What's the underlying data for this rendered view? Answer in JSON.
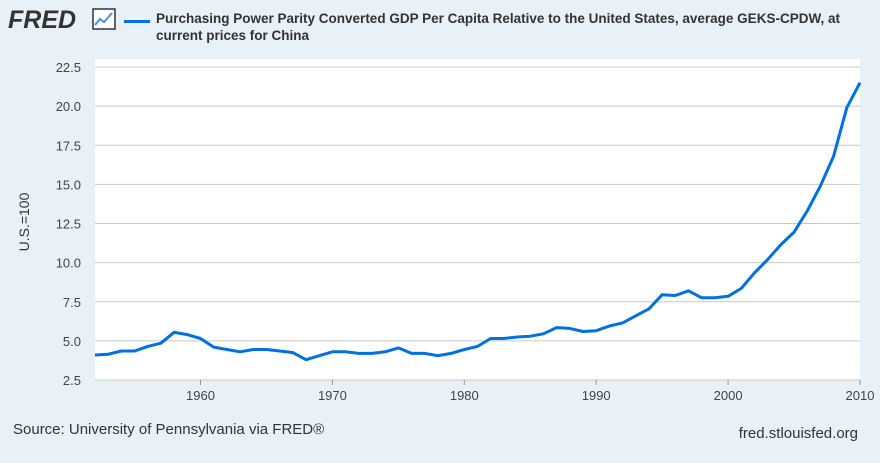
{
  "header": {
    "logo": "FRED",
    "logo_icon": "line-chart-icon"
  },
  "footer": {
    "source": "Source: University of Pennsylvania via FRED®",
    "site": "fred.stlouisfed.org"
  },
  "chart_data": {
    "type": "line",
    "title": "",
    "xlabel": "",
    "ylabel": "U.S.=100",
    "xlim": [
      1952,
      2010
    ],
    "ylim": [
      2.5,
      22.5
    ],
    "grid": true,
    "legend_placement": "top",
    "x_ticks": [
      "1960",
      "1970",
      "1980",
      "1990",
      "2000",
      "2010"
    ],
    "y_ticks": [
      "2.5",
      "5.0",
      "7.5",
      "10.0",
      "12.5",
      "15.0",
      "17.5",
      "20.0",
      "22.5"
    ],
    "colors": {
      "series": "#0071e3",
      "background": "#e8f0f8",
      "plot": "#ffffff",
      "grid": "#c8c8c8"
    },
    "series": [
      {
        "name": "Purchasing Power Parity Converted GDP Per Capita Relative to the United States, average GEKS-CPDW, at current prices for China",
        "x": [
          1952,
          1953,
          1954,
          1955,
          1956,
          1957,
          1958,
          1959,
          1960,
          1961,
          1962,
          1963,
          1964,
          1965,
          1966,
          1967,
          1968,
          1969,
          1970,
          1971,
          1972,
          1973,
          1974,
          1975,
          1976,
          1977,
          1978,
          1979,
          1980,
          1981,
          1982,
          1983,
          1984,
          1985,
          1986,
          1987,
          1988,
          1989,
          1990,
          1991,
          1992,
          1993,
          1994,
          1995,
          1996,
          1997,
          1998,
          1999,
          2000,
          2001,
          2002,
          2003,
          2004,
          2005,
          2006,
          2007,
          2008,
          2009,
          2010
        ],
        "values": [
          4.1,
          4.15,
          4.35,
          4.35,
          4.65,
          4.85,
          5.55,
          5.4,
          5.15,
          4.6,
          4.45,
          4.3,
          4.45,
          4.45,
          4.35,
          4.25,
          3.8,
          4.05,
          4.3,
          4.3,
          4.2,
          4.2,
          4.3,
          4.55,
          4.2,
          4.2,
          4.05,
          4.2,
          4.45,
          4.65,
          5.15,
          5.15,
          5.25,
          5.3,
          5.45,
          5.85,
          5.8,
          5.6,
          5.65,
          5.95,
          6.15,
          6.6,
          7.05,
          7.95,
          7.9,
          8.2,
          7.75,
          7.75,
          7.85,
          8.35,
          9.35,
          10.2,
          11.15,
          11.95,
          13.3,
          14.9,
          16.8,
          19.9,
          21.5
        ]
      }
    ]
  }
}
